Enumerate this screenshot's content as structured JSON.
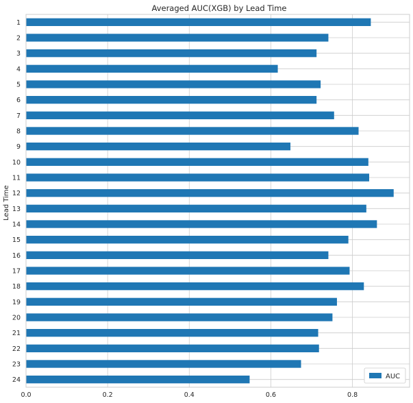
{
  "chart_data": {
    "type": "bar",
    "orientation": "horizontal",
    "title": "Averaged AUC(XGB) by Lead Time",
    "xlabel": "",
    "ylabel": "Lead Time",
    "categories": [
      "1",
      "2",
      "3",
      "4",
      "5",
      "6",
      "7",
      "8",
      "9",
      "10",
      "11",
      "12",
      "13",
      "14",
      "15",
      "16",
      "17",
      "18",
      "19",
      "20",
      "21",
      "22",
      "23",
      "24"
    ],
    "series": [
      {
        "name": "AUC",
        "values": [
          0.845,
          0.741,
          0.712,
          0.617,
          0.722,
          0.712,
          0.755,
          0.815,
          0.648,
          0.839,
          0.841,
          0.901,
          0.834,
          0.86,
          0.79,
          0.741,
          0.793,
          0.828,
          0.762,
          0.751,
          0.716,
          0.718,
          0.674,
          0.548
        ]
      }
    ],
    "xlim": [
      0,
      0.94
    ],
    "xticks": [
      "0.0",
      "0.2",
      "0.4",
      "0.6",
      "0.8"
    ],
    "xtick_values": [
      0,
      0.2,
      0.4,
      0.6,
      0.8
    ],
    "grid": true,
    "legend_position": "lower-right",
    "bar_color": "#1f77b4",
    "grid_color": "#cccccc",
    "axes_edge_color": "#cccccc"
  }
}
